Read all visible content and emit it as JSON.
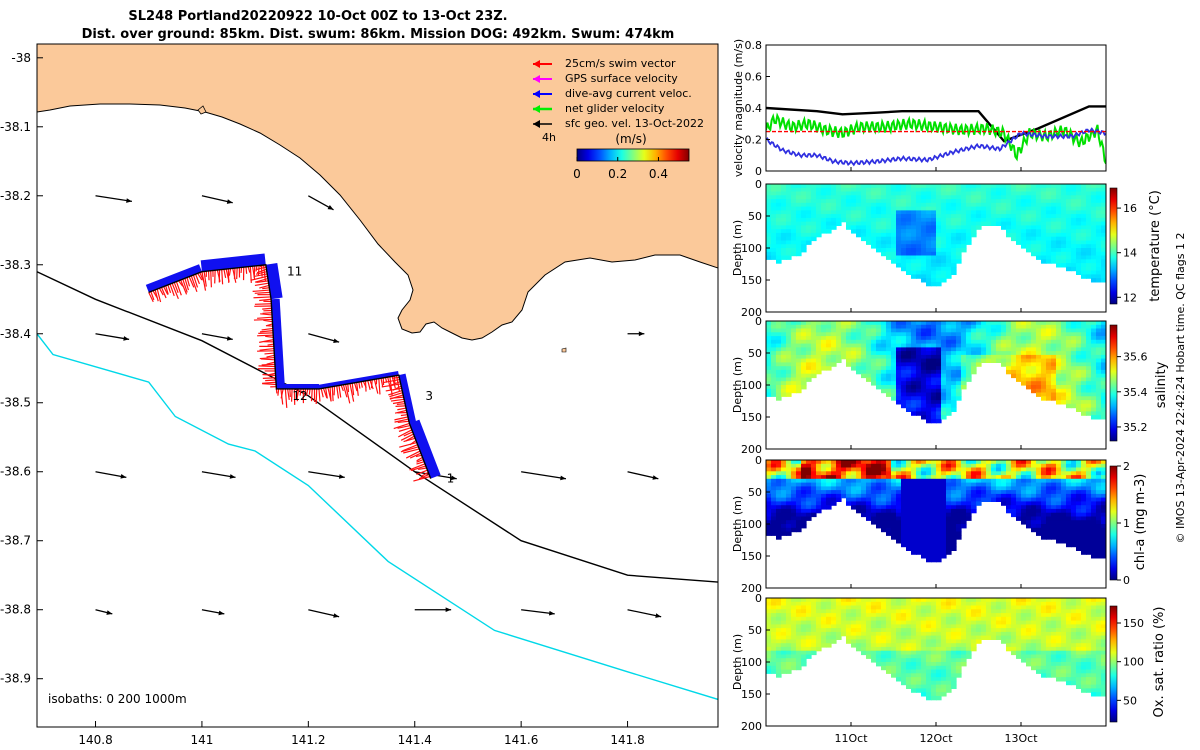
{
  "title": {
    "line1": "SL248 Portland20220922 10-Oct 00Z to 13-Oct 23Z.",
    "line2": "Dist. over ground: 85km. Dist. swum: 86km. Mission DOG: 492km. Swum: 474km"
  },
  "credit": "© IMOS 13-Apr-2024 22:42:24 Hobart time. QC flags 1  2",
  "chart_data": [
    {
      "type": "map",
      "xlim": [
        140.69,
        141.97
      ],
      "ylim": [
        -38.97,
        -37.98
      ],
      "x_ticks": [
        140.8,
        141,
        141.2,
        141.4,
        141.6,
        141.8
      ],
      "x_tick_labels": [
        "140.8",
        "141",
        "141.2",
        "141.4",
        "141.6",
        "141.8"
      ],
      "y_ticks": [
        -38,
        -38.1,
        -38.2,
        -38.3,
        -38.4,
        -38.5,
        -38.6,
        -38.7,
        -38.8,
        -38.9
      ],
      "y_tick_labels": [
        "-38",
        "-38.1",
        "-38.2",
        "-38.3",
        "-38.4",
        "-38.5",
        "-38.6",
        "-38.7",
        "-38.8",
        "-38.9"
      ],
      "land_color": "#fbc99a",
      "legend": [
        {
          "label": "25cm/s swim vector",
          "color": "#ff0000"
        },
        {
          "label": "GPS surface velocity",
          "color": "#ff00ff"
        },
        {
          "label": "dive-avg current veloc.",
          "color": "#0000ff"
        },
        {
          "label": "net glider velocity",
          "color": "#00ee00"
        },
        {
          "label": "sfc geo. vel. 13-Oct-2022",
          "color": "#000000"
        }
      ],
      "legend_extra": "4h",
      "colorbar": {
        "label": "(m/s)",
        "ticks": [
          "0",
          "0.2",
          "0.4"
        ],
        "range": [
          0,
          0.55
        ]
      },
      "isobaths_label": "isobaths: 0   200  1000m",
      "isobath_200": [
        [
          140.69,
          -38.31
        ],
        [
          140.8,
          -38.35
        ],
        [
          141.0,
          -38.41
        ],
        [
          141.2,
          -38.49
        ],
        [
          141.4,
          -38.6
        ],
        [
          141.6,
          -38.7
        ],
        [
          141.8,
          -38.75
        ],
        [
          141.97,
          -38.76
        ]
      ],
      "isobath_1000": [
        [
          140.69,
          -38.4
        ],
        [
          140.72,
          -38.43
        ],
        [
          140.9,
          -38.47
        ],
        [
          140.95,
          -38.52
        ],
        [
          141.05,
          -38.56
        ],
        [
          141.1,
          -38.57
        ],
        [
          141.2,
          -38.62
        ],
        [
          141.35,
          -38.73
        ],
        [
          141.55,
          -38.83
        ],
        [
          141.8,
          -38.89
        ],
        [
          141.97,
          -38.93
        ]
      ],
      "track": [
        [
          140.9,
          -38.34
        ],
        [
          141.0,
          -38.31
        ],
        [
          141.12,
          -38.3
        ],
        [
          141.13,
          -38.35
        ],
        [
          141.14,
          -38.48
        ],
        [
          141.22,
          -38.48
        ],
        [
          141.37,
          -38.46
        ],
        [
          141.39,
          -38.53
        ],
        [
          141.43,
          -38.61
        ]
      ],
      "track_labels": [
        {
          "text": "11",
          "lon": 141.16,
          "lat": -38.31
        },
        {
          "text": "12",
          "lon": 141.17,
          "lat": -38.49
        },
        {
          "text": "3",
          "lon": 141.42,
          "lat": -38.49
        },
        {
          "text": "1",
          "lon": 141.46,
          "lat": -38.61
        }
      ],
      "geo_arrows": {
        "lons": [
          140.8,
          141.0,
          141.2,
          141.4,
          141.6,
          141.8
        ],
        "rows": [
          {
            "lat": -38.2,
            "vectors": [
              [
                0.26,
                -0.04
              ],
              [
                0.22,
                -0.05
              ],
              [
                0.18,
                -0.1
              ],
              null,
              null,
              null
            ]
          },
          {
            "lat": -38.4,
            "vectors": [
              [
                0.24,
                -0.04
              ],
              [
                0.22,
                -0.04
              ],
              [
                0.22,
                -0.06
              ],
              null,
              null,
              [
                0.12,
                0.0
              ]
            ]
          },
          {
            "lat": -38.6,
            "vectors": [
              [
                0.22,
                -0.04
              ],
              [
                0.24,
                -0.04
              ],
              [
                0.26,
                -0.04
              ],
              [
                0.3,
                -0.05
              ],
              [
                0.32,
                -0.05
              ],
              [
                0.22,
                -0.05
              ]
            ]
          },
          {
            "lat": -38.8,
            "vectors": [
              [
                0.12,
                -0.03
              ],
              [
                0.16,
                -0.03
              ],
              [
                0.22,
                -0.05
              ],
              [
                0.26,
                0.0
              ],
              [
                0.24,
                -0.03
              ],
              [
                0.24,
                -0.05
              ]
            ]
          }
        ]
      }
    },
    {
      "type": "line",
      "ylabel": "velocity magnitude (m/s)",
      "ylim": [
        0,
        0.8
      ],
      "y_ticks": [
        "0",
        "0.2",
        "0.4",
        "0.6",
        "0.8"
      ],
      "x_range_days": [
        10.0,
        14.0
      ],
      "series": [
        {
          "color": "#000000",
          "x": [
            10.0,
            10.6,
            10.9,
            11.3,
            11.6,
            12.2,
            12.5,
            12.8,
            13.2,
            13.8,
            14.0
          ],
          "y": [
            0.4,
            0.38,
            0.36,
            0.37,
            0.38,
            0.38,
            0.38,
            0.19,
            0.27,
            0.41,
            0.41
          ]
        },
        {
          "color": "#00e000",
          "x": [
            10.0,
            10.1,
            10.3,
            10.5,
            10.7,
            10.9,
            11.1,
            11.4,
            11.7,
            12.0,
            12.3,
            12.6,
            12.8,
            12.95,
            13.1,
            13.3,
            13.5,
            13.7,
            13.9,
            14.0
          ],
          "y": [
            0.26,
            0.33,
            0.28,
            0.3,
            0.26,
            0.24,
            0.28,
            0.28,
            0.3,
            0.28,
            0.26,
            0.27,
            0.24,
            0.1,
            0.24,
            0.22,
            0.26,
            0.18,
            0.26,
            0.06
          ]
        },
        {
          "color": "#3030e0",
          "x": [
            10.0,
            10.2,
            10.4,
            10.6,
            10.8,
            11.0,
            11.3,
            11.6,
            11.9,
            12.2,
            12.5,
            12.75,
            13.0,
            13.3,
            13.6,
            13.8,
            14.0
          ],
          "y": [
            0.2,
            0.13,
            0.1,
            0.1,
            0.06,
            0.05,
            0.06,
            0.08,
            0.07,
            0.12,
            0.16,
            0.14,
            0.24,
            0.22,
            0.22,
            0.26,
            0.24
          ]
        },
        {
          "color": "#ff0000",
          "dashed": true,
          "x": [
            10.0,
            14.0
          ],
          "y": [
            0.25,
            0.25
          ]
        }
      ]
    },
    {
      "type": "heatmap",
      "variable": "temperature",
      "ylabel": "Depth (m)",
      "colorbar_label": "temperature (°C)",
      "clim": [
        11.7,
        16.9
      ],
      "colorbar_ticks": [
        "12",
        "14",
        "16"
      ],
      "colorbar_tick_values": [
        12,
        14,
        16
      ],
      "depth_range": [
        0,
        200
      ],
      "y_ticks": [
        "0",
        "50",
        "100",
        "150",
        "200"
      ],
      "base": 14.2
    },
    {
      "type": "heatmap",
      "variable": "salinity",
      "ylabel": "Depth (m)",
      "colorbar_label": "salinity",
      "clim": [
        35.12,
        35.78
      ],
      "colorbar_ticks": [
        "35.2",
        "35.4",
        "35.6"
      ],
      "colorbar_tick_values": [
        35.2,
        35.4,
        35.6
      ],
      "depth_range": [
        0,
        200
      ],
      "y_ticks": [
        "0",
        "50",
        "100",
        "150",
        "200"
      ],
      "base": 35.47
    },
    {
      "type": "heatmap",
      "variable": "chl-a",
      "ylabel": "Depth (m)",
      "colorbar_label": "chl-a (mg m-3)",
      "clim": [
        0,
        2
      ],
      "colorbar_ticks": [
        "0",
        "1",
        "2"
      ],
      "colorbar_tick_values": [
        0,
        1,
        2
      ],
      "depth_range": [
        0,
        200
      ],
      "y_ticks": [
        "0",
        "50",
        "100",
        "150",
        "200"
      ],
      "base": 0.8
    },
    {
      "type": "heatmap",
      "variable": "oxygen saturation",
      "ylabel": "Depth (m)",
      "colorbar_label": "Ox. sat. ratio (%)",
      "clim": [
        22,
        172
      ],
      "colorbar_ticks": [
        "50",
        "100",
        "150"
      ],
      "colorbar_tick_values": [
        50,
        100,
        150
      ],
      "depth_range": [
        0,
        200
      ],
      "y_ticks": [
        "0",
        "50",
        "100",
        "150",
        "200"
      ],
      "base": 108
    }
  ],
  "time_axis": {
    "ticks": [
      "11Oct",
      "12Oct",
      "13Oct"
    ],
    "tick_days": [
      11,
      12,
      13
    ],
    "range_days": [
      10.0,
      14.0
    ]
  },
  "seafloor_depth_profile": {
    "days": [
      10.0,
      10.15,
      10.4,
      10.6,
      10.9,
      11.15,
      11.4,
      11.6,
      11.8,
      11.95,
      12.05,
      12.2,
      12.35,
      12.5,
      12.7,
      12.95,
      13.2,
      13.45,
      13.65,
      13.85,
      14.0
    ],
    "depth_m": [
      118,
      122,
      108,
      85,
      60,
      88,
      112,
      132,
      150,
      160,
      158,
      140,
      100,
      70,
      62,
      92,
      118,
      128,
      140,
      150,
      155
    ]
  }
}
